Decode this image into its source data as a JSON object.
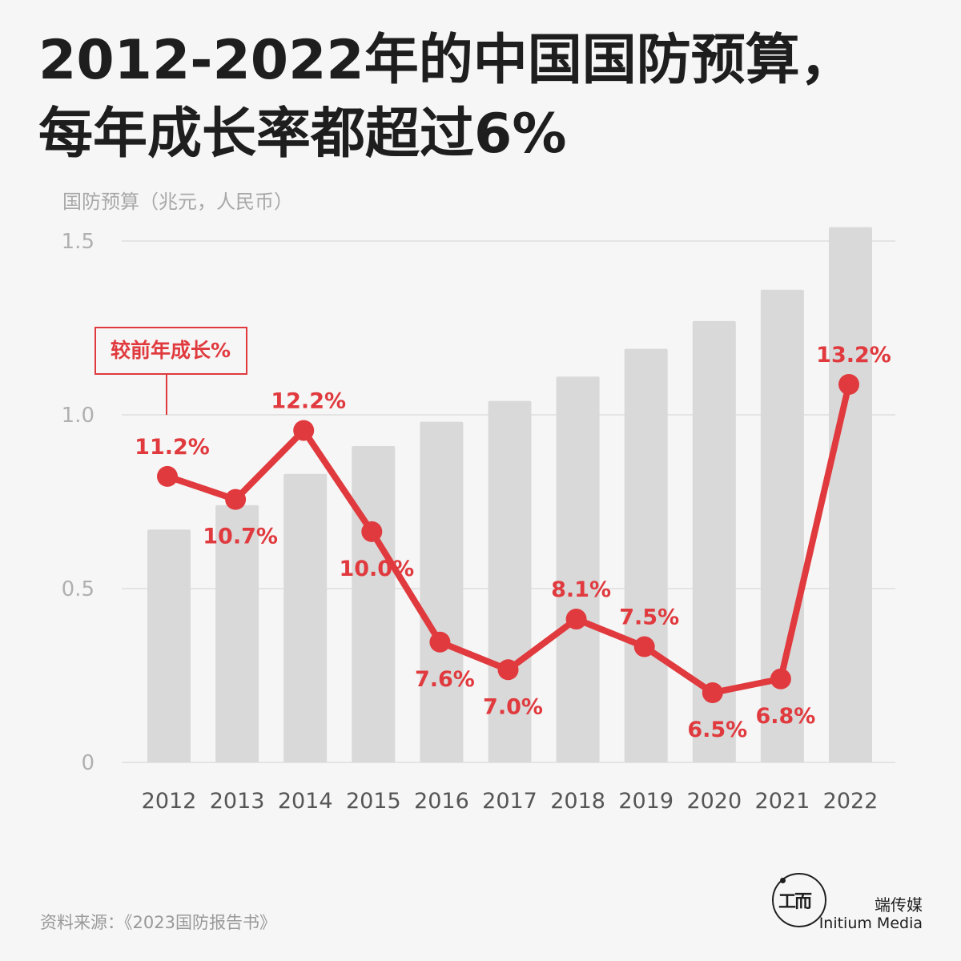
{
  "title_line1": "2012-2022年的中国国防预算，",
  "title_line2": "每年成长率都超过6%",
  "source": "资料来源：《2023国防报告书》",
  "logo": {
    "cn": "端传媒",
    "en": "Initium Media"
  },
  "chart_data": {
    "type": "bar",
    "ylabel": "国防预算（兆元，人民币）",
    "ylim": [
      0,
      1.5
    ],
    "yticks": [
      {
        "value": 0,
        "label": "0"
      },
      {
        "value": 0.5,
        "label": "0.5"
      },
      {
        "value": 1.0,
        "label": "1.0"
      },
      {
        "value": 1.5,
        "label": "1.5"
      }
    ],
    "grid": true,
    "categories": [
      "2012",
      "2013",
      "2014",
      "2015",
      "2016",
      "2017",
      "2018",
      "2019",
      "2020",
      "2021",
      "2022"
    ],
    "values": [
      0.67,
      0.74,
      0.83,
      0.91,
      0.98,
      1.04,
      1.11,
      1.19,
      1.27,
      1.36,
      1.54
    ],
    "bar_color": "#d9d9d9",
    "growth": {
      "name": "较前年成长%",
      "color": "#e03a3e",
      "values": [
        11.2,
        10.7,
        12.2,
        10.0,
        7.6,
        7.0,
        8.1,
        7.5,
        6.5,
        6.8,
        13.2
      ],
      "labels": [
        "11.2%",
        "10.7%",
        "12.2%",
        "10.0%",
        "7.6%",
        "7.0%",
        "8.1%",
        "7.5%",
        "6.5%",
        "6.8%",
        "13.2%"
      ]
    }
  }
}
